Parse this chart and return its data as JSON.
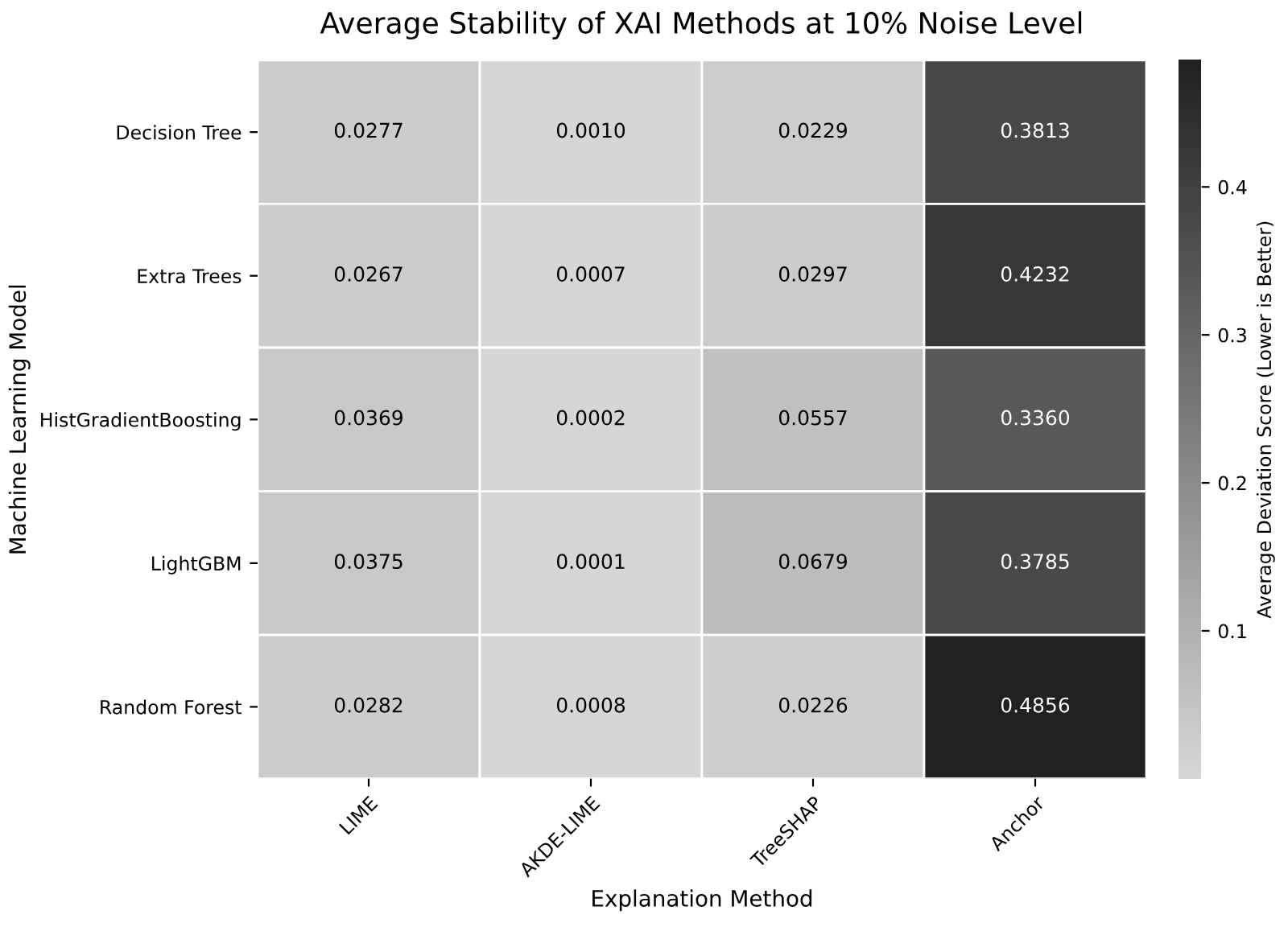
{
  "chart_data": {
    "type": "heatmap",
    "title": "Average Stability of XAI Methods at 10% Noise Level",
    "xlabel": "Explanation Method",
    "ylabel": "Machine Learning Model",
    "clabel": "Average Deviation Score (Lower is Better)",
    "categories": [
      "LIME",
      "AKDE-LIME",
      "TreeSHAP",
      "Anchor"
    ],
    "y_categories": [
      "Decision Tree",
      "Extra Trees",
      "HistGradientBoosting",
      "LightGBM",
      "Random Forest"
    ],
    "cells": [
      [
        0.0277,
        0.001,
        0.0229,
        0.3813
      ],
      [
        0.0267,
        0.0007,
        0.0297,
        0.4232
      ],
      [
        0.0369,
        0.0002,
        0.0557,
        0.336
      ],
      [
        0.0375,
        0.0001,
        0.0679,
        0.3785
      ],
      [
        0.0282,
        0.0008,
        0.0226,
        0.4856
      ]
    ],
    "cell_labels": [
      [
        "0.0277",
        "0.0010",
        "0.0229",
        "0.3813"
      ],
      [
        "0.0267",
        "0.0007",
        "0.0297",
        "0.4232"
      ],
      [
        "0.0369",
        "0.0002",
        "0.0557",
        "0.3360"
      ],
      [
        "0.0375",
        "0.0001",
        "0.0679",
        "0.3785"
      ],
      [
        "0.0282",
        "0.0008",
        "0.0226",
        "0.4856"
      ]
    ],
    "clim": [
      0.0001,
      0.4856
    ],
    "cticks": [
      0.1,
      0.2,
      0.3,
      0.4
    ]
  }
}
